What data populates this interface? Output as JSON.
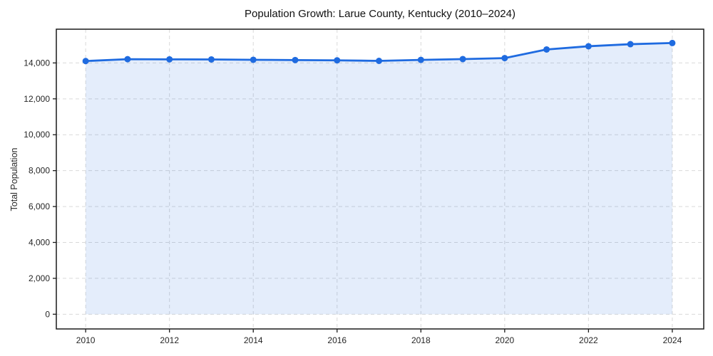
{
  "chart_data": {
    "type": "area",
    "title": "Population Growth: Larue County, Kentucky (2010–2024)",
    "xlabel": "",
    "ylabel": "Total Population",
    "x": [
      2010,
      2011,
      2012,
      2013,
      2014,
      2015,
      2016,
      2017,
      2018,
      2019,
      2020,
      2021,
      2022,
      2023,
      2024
    ],
    "series": [
      {
        "name": "Total Population",
        "values": [
          14105,
          14210,
          14200,
          14195,
          14175,
          14160,
          14145,
          14115,
          14170,
          14215,
          14270,
          14750,
          14930,
          15045,
          15110
        ]
      }
    ],
    "xticks": [
      2010,
      2012,
      2014,
      2016,
      2018,
      2020,
      2022,
      2024
    ],
    "yticks": [
      0,
      2000,
      4000,
      6000,
      8000,
      10000,
      12000,
      14000
    ],
    "xlim": [
      2009.3,
      2024.75
    ],
    "ylim": [
      -820,
      15880
    ],
    "area_baseline": 0,
    "grid": true,
    "grid_style": "dashed",
    "legend": false,
    "colors": {
      "line": "#1f6be0",
      "marker": "#1f6be0",
      "fill": "#1f6be0",
      "fill_opacity": 0.12,
      "grid": "#d9d9d9",
      "spine": "#1a1a1a",
      "tick": "#1a1a1a",
      "tick_text": "#262626",
      "title_text": "#111111",
      "background": "#ffffff"
    }
  }
}
